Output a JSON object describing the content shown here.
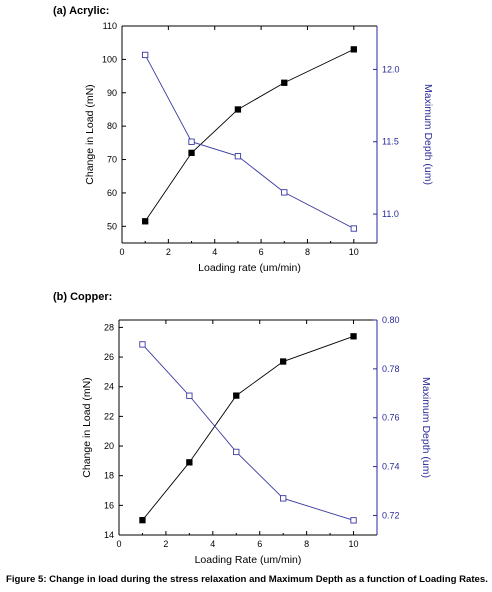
{
  "caption": "Figure 5: Change in load during the stress relaxation and Maximum Depth as a function of Loading Rates.",
  "colors": {
    "left_series": "#000000",
    "right_series": "#3a3aa0",
    "right_axis": "#2a2a99"
  },
  "chart_data": [
    {
      "type": "line",
      "title": "(a)  Acrylic:",
      "xlabel": "Loading rate (um/min)",
      "ylabel": "Change in Load (mN)",
      "y2label": "Maximum Depth (um)",
      "xlim": [
        0,
        11
      ],
      "ylim": [
        45,
        110
      ],
      "y2lim": [
        10.8,
        12.3
      ],
      "xticks": [
        "0",
        "2",
        "4",
        "6",
        "8",
        "10"
      ],
      "xtick_values": [
        0,
        2,
        4,
        6,
        8,
        10
      ],
      "yticks": [
        "50",
        "60",
        "70",
        "80",
        "90",
        "100",
        "110"
      ],
      "ytick_values": [
        50,
        60,
        70,
        80,
        90,
        100,
        110
      ],
      "y2ticks": [
        "11.0",
        "11.5",
        "12.0"
      ],
      "y2tick_values": [
        11.0,
        11.5,
        12.0
      ],
      "grid": false,
      "series": [
        {
          "axis": "left",
          "marker": "filled-square",
          "x": [
            1,
            3,
            5,
            7,
            10
          ],
          "y": [
            51.5,
            72,
            85,
            93,
            103
          ]
        },
        {
          "axis": "right",
          "marker": "open-square",
          "x": [
            1,
            3,
            5,
            7,
            10
          ],
          "y": [
            12.1,
            11.5,
            11.4,
            11.15,
            10.9
          ]
        }
      ]
    },
    {
      "type": "line",
      "title": "(b)  Copper:",
      "xlabel": "Loading Rate (um/min)",
      "ylabel": "Change in Load (mN)",
      "y2label": "Maximum Depth (um)",
      "xlim": [
        0,
        11
      ],
      "ylim": [
        14,
        28.5
      ],
      "y2lim": [
        0.712,
        0.8
      ],
      "xticks": [
        "0",
        "2",
        "4",
        "6",
        "8",
        "10"
      ],
      "xtick_values": [
        0,
        2,
        4,
        6,
        8,
        10
      ],
      "yticks": [
        "14",
        "16",
        "18",
        "20",
        "22",
        "24",
        "26",
        "28"
      ],
      "ytick_values": [
        14,
        16,
        18,
        20,
        22,
        24,
        26,
        28
      ],
      "y2ticks": [
        "0.72",
        "0.74",
        "0.76",
        "0.78",
        "0.80"
      ],
      "y2tick_values": [
        0.72,
        0.74,
        0.76,
        0.78,
        0.8
      ],
      "grid": false,
      "series": [
        {
          "axis": "left",
          "marker": "filled-square",
          "x": [
            1,
            3,
            5,
            7,
            10
          ],
          "y": [
            15.0,
            18.9,
            23.4,
            25.7,
            27.4
          ]
        },
        {
          "axis": "right",
          "marker": "open-square",
          "x": [
            1,
            3,
            5,
            7,
            10
          ],
          "y": [
            0.79,
            0.769,
            0.746,
            0.727,
            0.718
          ]
        }
      ]
    }
  ]
}
